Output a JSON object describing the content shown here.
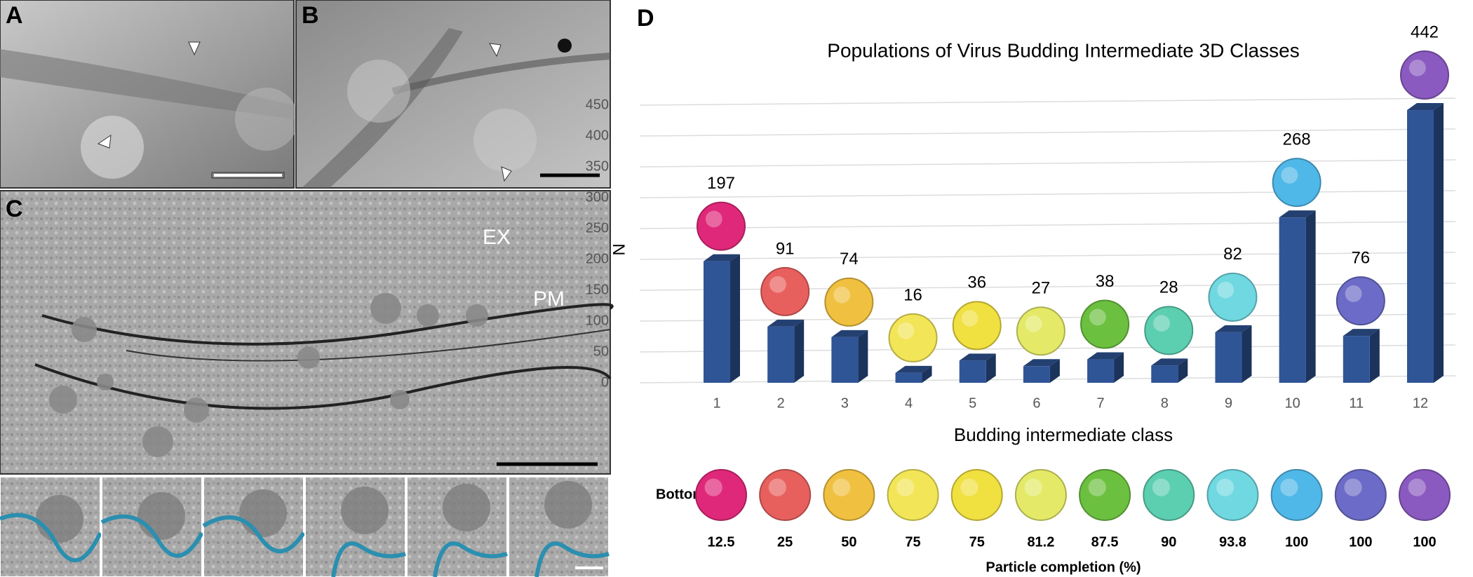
{
  "panels": {
    "a": "A",
    "b": "B",
    "c": "C",
    "d": "D"
  },
  "annotations": {
    "ex": "EX",
    "pm": "PM"
  },
  "chart_data": {
    "type": "bar",
    "title": "Populations of Virus Budding Intermediate 3D Classes",
    "y_label": "N",
    "x_label": "Budding intermediate class",
    "categories": [
      "1",
      "2",
      "3",
      "4",
      "5",
      "6",
      "7",
      "8",
      "9",
      "10",
      "11",
      "12"
    ],
    "values": [
      197,
      91,
      74,
      16,
      36,
      27,
      38,
      28,
      82,
      268,
      76,
      442
    ],
    "color": "#2f5597",
    "icon_colors": [
      "#e0287a",
      "#e8605e",
      "#f0c040",
      "#f2e658",
      "#f0e040",
      "#e4ea68",
      "#6cc040",
      "#5ccfb0",
      "#70d8e0",
      "#50b8e8",
      "#6c6cc8",
      "#8a5ac0"
    ],
    "ylim": [
      0,
      450
    ],
    "yticks": [
      0,
      50,
      100,
      150,
      200,
      250,
      300,
      350,
      400,
      450
    ],
    "grid": true,
    "bottom_label": "Bottom",
    "completion": [
      12.5,
      25,
      50,
      75,
      75,
      81.2,
      87.5,
      90,
      93.8,
      100,
      100,
      100
    ],
    "completion_label": "Particle completion (%)"
  }
}
